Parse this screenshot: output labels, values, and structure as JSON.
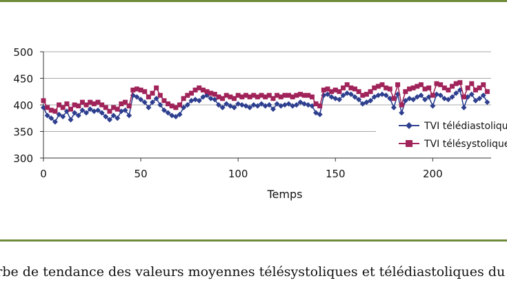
{
  "chart_data": {
    "type": "line",
    "xlabel": "Temps",
    "xlim": [
      0,
      230
    ],
    "ylim": [
      300,
      500
    ],
    "xticks": [
      0,
      50,
      100,
      150,
      200
    ],
    "yticks": [
      300,
      350,
      400,
      450,
      500
    ],
    "gridlines_y": true,
    "legend_position": "right",
    "series": [
      {
        "name": "TVI télédiastolique",
        "color": "#2e3f8f",
        "marker": "diamond",
        "x": [
          0,
          2,
          4,
          6,
          8,
          10,
          12,
          14,
          16,
          18,
          20,
          22,
          24,
          26,
          28,
          30,
          32,
          34,
          36,
          38,
          40,
          42,
          44,
          46,
          48,
          50,
          52,
          54,
          56,
          58,
          60,
          62,
          64,
          66,
          68,
          70,
          72,
          74,
          76,
          78,
          80,
          82,
          84,
          86,
          88,
          90,
          92,
          94,
          96,
          98,
          100,
          102,
          104,
          106,
          108,
          110,
          112,
          114,
          116,
          118,
          120,
          122,
          124,
          126,
          128,
          130,
          132,
          134,
          136,
          138,
          140,
          142,
          144,
          146,
          148,
          150,
          152,
          154,
          156,
          158,
          160,
          162,
          164,
          166,
          168,
          170,
          172,
          174,
          176,
          178,
          180,
          182,
          184,
          186,
          188,
          190,
          192,
          194,
          196,
          198,
          200,
          202,
          204,
          206,
          208,
          210,
          212,
          214,
          216,
          218,
          220,
          222,
          224,
          226,
          228
        ],
        "values": [
          395,
          380,
          375,
          368,
          382,
          378,
          388,
          372,
          385,
          380,
          390,
          385,
          392,
          388,
          390,
          385,
          378,
          372,
          380,
          375,
          388,
          390,
          380,
          418,
          415,
          410,
          405,
          395,
          405,
          412,
          400,
          390,
          385,
          380,
          378,
          382,
          395,
          400,
          408,
          410,
          408,
          415,
          418,
          412,
          410,
          400,
          395,
          402,
          398,
          395,
          402,
          400,
          398,
          395,
          400,
          398,
          402,
          398,
          400,
          392,
          402,
          398,
          400,
          402,
          398,
          400,
          405,
          402,
          400,
          398,
          385,
          382,
          418,
          420,
          415,
          412,
          410,
          418,
          422,
          420,
          415,
          410,
          402,
          405,
          408,
          415,
          418,
          420,
          418,
          412,
          395,
          420,
          385,
          408,
          412,
          410,
          415,
          418,
          410,
          415,
          398,
          420,
          418,
          412,
          410,
          415,
          422,
          428,
          395,
          415,
          420,
          408,
          412,
          418,
          405
        ],
        "values_note_hidden": false
      },
      {
        "name": "TVI télésystolique",
        "color": "#a0235a",
        "marker": "square",
        "x": [
          0,
          2,
          4,
          6,
          8,
          10,
          12,
          14,
          16,
          18,
          20,
          22,
          24,
          26,
          28,
          30,
          32,
          34,
          36,
          38,
          40,
          42,
          44,
          46,
          48,
          50,
          52,
          54,
          56,
          58,
          60,
          62,
          64,
          66,
          68,
          70,
          72,
          74,
          76,
          78,
          80,
          82,
          84,
          86,
          88,
          90,
          92,
          94,
          96,
          98,
          100,
          102,
          104,
          106,
          108,
          110,
          112,
          114,
          116,
          118,
          120,
          122,
          124,
          126,
          128,
          130,
          132,
          134,
          136,
          138,
          140,
          142,
          144,
          146,
          148,
          150,
          152,
          154,
          156,
          158,
          160,
          162,
          164,
          166,
          168,
          170,
          172,
          174,
          176,
          178,
          180,
          182,
          184,
          186,
          188,
          190,
          192,
          194,
          196,
          198,
          200,
          202,
          204,
          206,
          208,
          210,
          212,
          214,
          216,
          218,
          220,
          222,
          224,
          226,
          228
        ],
        "values": [
          408,
          395,
          390,
          388,
          400,
          395,
          402,
          392,
          400,
          398,
          405,
          400,
          405,
          402,
          405,
          400,
          395,
          388,
          395,
          392,
          402,
          405,
          398,
          428,
          430,
          428,
          425,
          415,
          422,
          432,
          418,
          408,
          402,
          398,
          395,
          400,
          412,
          418,
          422,
          428,
          432,
          428,
          425,
          422,
          420,
          415,
          412,
          418,
          415,
          412,
          418,
          415,
          418,
          415,
          418,
          415,
          418,
          415,
          418,
          412,
          418,
          415,
          418,
          418,
          415,
          418,
          420,
          418,
          418,
          415,
          402,
          398,
          428,
          430,
          425,
          428,
          425,
          432,
          438,
          432,
          430,
          425,
          418,
          420,
          425,
          432,
          435,
          438,
          432,
          430,
          412,
          438,
          400,
          425,
          430,
          432,
          435,
          438,
          430,
          432,
          418,
          440,
          438,
          432,
          428,
          435,
          440,
          442,
          415,
          432,
          440,
          428,
          432,
          438,
          425
        ]
      }
    ]
  },
  "caption_text": "urbe de tendance des valeurs moyennes télésystoliques et télédiastoliques du TVI à l"
}
